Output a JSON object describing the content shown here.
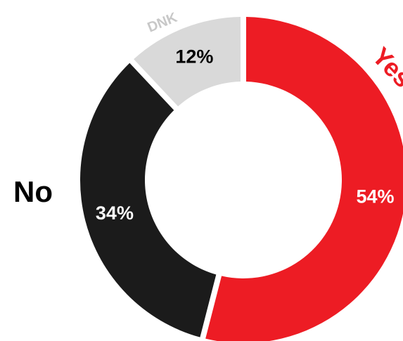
{
  "chart_data": {
    "type": "pie",
    "variant": "donut",
    "categories": [
      "Yes",
      "No",
      "DNK"
    ],
    "values": [
      54,
      34,
      12
    ],
    "value_labels": [
      "54%",
      "34%",
      "12%"
    ],
    "colors": [
      "#ed1c24",
      "#1b1b1b",
      "#d9d9d9"
    ],
    "label_colors": [
      "#ffffff",
      "#ffffff",
      "#000000"
    ],
    "category_label_colors": [
      "#ed1c24",
      "#000000",
      "#c8c8c8"
    ],
    "start": "12 o'clock",
    "direction": "clockwise"
  }
}
